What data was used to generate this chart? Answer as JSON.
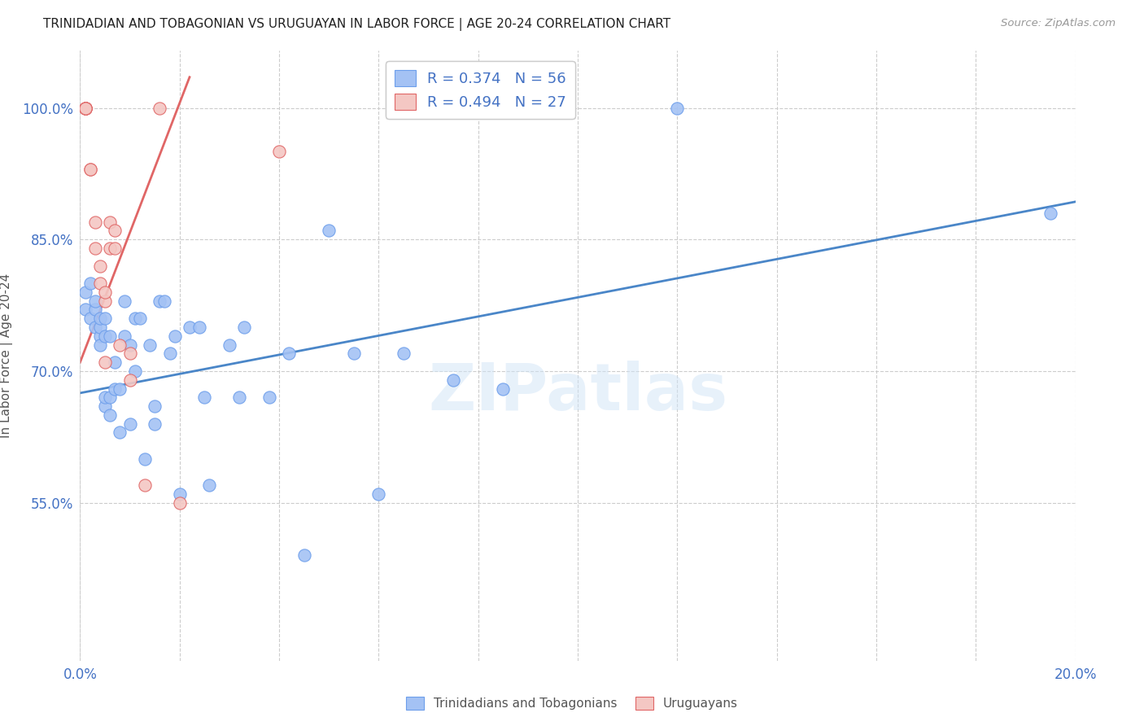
{
  "title": "TRINIDADIAN AND TOBAGONIAN VS URUGUAYAN IN LABOR FORCE | AGE 20-24 CORRELATION CHART",
  "source": "Source: ZipAtlas.com",
  "ylabel": "In Labor Force | Age 20-24",
  "xlim": [
    0.0,
    0.2
  ],
  "ylim": [
    0.37,
    1.065
  ],
  "xtick_positions": [
    0.0,
    0.02,
    0.04,
    0.06,
    0.08,
    0.1,
    0.12,
    0.14,
    0.16,
    0.18,
    0.2
  ],
  "ytick_positions": [
    0.55,
    0.7,
    0.85,
    1.0
  ],
  "yticklabels": [
    "55.0%",
    "70.0%",
    "85.0%",
    "100.0%"
  ],
  "blue_R": 0.374,
  "blue_N": 56,
  "pink_R": 0.494,
  "pink_N": 27,
  "blue_color": "#a4c2f4",
  "pink_color": "#f4c7c3",
  "blue_edge_color": "#6d9eeb",
  "pink_edge_color": "#e06666",
  "blue_line_color": "#4a86c8",
  "pink_line_color": "#e06666",
  "legend_label_blue": "Trinidadians and Tobagonians",
  "legend_label_pink": "Uruguayans",
  "watermark": "ZIPatlas",
  "tick_color": "#4472c4",
  "blue_scatter_x": [
    0.001,
    0.001,
    0.002,
    0.002,
    0.003,
    0.003,
    0.003,
    0.004,
    0.004,
    0.004,
    0.004,
    0.005,
    0.005,
    0.005,
    0.005,
    0.006,
    0.006,
    0.006,
    0.007,
    0.007,
    0.008,
    0.008,
    0.009,
    0.009,
    0.01,
    0.01,
    0.011,
    0.011,
    0.012,
    0.013,
    0.014,
    0.015,
    0.015,
    0.016,
    0.017,
    0.018,
    0.019,
    0.02,
    0.022,
    0.024,
    0.025,
    0.026,
    0.03,
    0.032,
    0.033,
    0.038,
    0.042,
    0.045,
    0.05,
    0.055,
    0.06,
    0.065,
    0.075,
    0.085,
    0.12,
    0.195
  ],
  "blue_scatter_y": [
    0.77,
    0.79,
    0.76,
    0.8,
    0.75,
    0.77,
    0.78,
    0.74,
    0.73,
    0.75,
    0.76,
    0.66,
    0.67,
    0.74,
    0.76,
    0.65,
    0.67,
    0.74,
    0.68,
    0.71,
    0.63,
    0.68,
    0.74,
    0.78,
    0.64,
    0.73,
    0.7,
    0.76,
    0.76,
    0.6,
    0.73,
    0.64,
    0.66,
    0.78,
    0.78,
    0.72,
    0.74,
    0.56,
    0.75,
    0.75,
    0.67,
    0.57,
    0.73,
    0.67,
    0.75,
    0.67,
    0.72,
    0.49,
    0.86,
    0.72,
    0.56,
    0.72,
    0.69,
    0.68,
    1.0,
    0.88
  ],
  "pink_scatter_x": [
    0.001,
    0.001,
    0.001,
    0.001,
    0.001,
    0.001,
    0.001,
    0.002,
    0.002,
    0.003,
    0.003,
    0.004,
    0.004,
    0.005,
    0.005,
    0.005,
    0.006,
    0.006,
    0.007,
    0.007,
    0.008,
    0.01,
    0.01,
    0.013,
    0.016,
    0.02,
    0.04
  ],
  "pink_scatter_y": [
    1.0,
    1.0,
    1.0,
    1.0,
    1.0,
    1.0,
    1.0,
    0.93,
    0.93,
    0.84,
    0.87,
    0.8,
    0.82,
    0.78,
    0.79,
    0.71,
    0.84,
    0.87,
    0.84,
    0.86,
    0.73,
    0.69,
    0.72,
    0.57,
    1.0,
    0.55,
    0.95
  ],
  "blue_line_x0": 0.0,
  "blue_line_x1": 0.2,
  "blue_line_y0": 0.675,
  "blue_line_y1": 0.893,
  "pink_line_x0": 0.0,
  "pink_line_x1": 0.022,
  "pink_line_y0": 0.71,
  "pink_line_y1": 1.035
}
